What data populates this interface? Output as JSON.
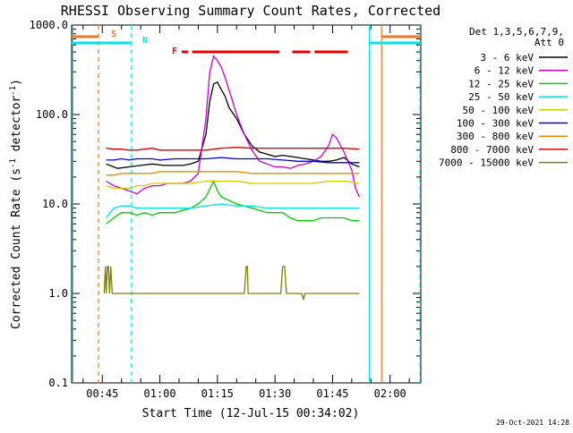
{
  "chart_data": {
    "type": "line",
    "title": "RHESSI Observing Summary Count Rates, Corrected",
    "xlabel": "Start Time (12-Jul-15 00:34:02)",
    "ylabel_parts": [
      "Corrected Count Rate (s",
      "-1",
      " detector",
      "-1",
      ")"
    ],
    "timestamp": "29-Oct-2021 14:28",
    "x_unit": "minutes after 00:00 UT",
    "xlim": [
      37,
      128
    ],
    "ylim": [
      0.1,
      1000
    ],
    "y_scale": "log",
    "x_ticks": [
      {
        "value": 45,
        "label": "00:45"
      },
      {
        "value": 60,
        "label": "01:00"
      },
      {
        "value": 75,
        "label": "01:15"
      },
      {
        "value": 90,
        "label": "01:30"
      },
      {
        "value": 105,
        "label": "01:45"
      },
      {
        "value": 120,
        "label": "02:00"
      }
    ],
    "y_ticks": [
      {
        "value": 0.1,
        "label": "0.1"
      },
      {
        "value": 1,
        "label": "1.0"
      },
      {
        "value": 10,
        "label": "10.0"
      },
      {
        "value": 100,
        "label": "100.0"
      },
      {
        "value": 1000,
        "label": "1000.0"
      }
    ],
    "legend_header": [
      "Det 1,3,5,6,7,9,",
      "Att 0"
    ],
    "legend_position": "right",
    "grid": false,
    "series": [
      {
        "name": "3 - 6 keV",
        "color": "#000000",
        "x": [
          46,
          49,
          52,
          55,
          58,
          61,
          64,
          66,
          68,
          70,
          72,
          73,
          74,
          75,
          76,
          77,
          78,
          80,
          82,
          84,
          86,
          88,
          90,
          92,
          94,
          96,
          98,
          100,
          102,
          104,
          106,
          108,
          110,
          112
        ],
        "y": [
          28,
          25,
          26,
          27,
          28,
          27,
          27,
          27,
          28,
          30,
          60,
          140,
          220,
          230,
          190,
          160,
          120,
          90,
          60,
          45,
          38,
          36,
          34,
          35,
          34,
          33,
          32,
          31,
          30,
          30,
          31,
          33,
          28,
          26
        ]
      },
      {
        "name": "6 - 12 keV",
        "color": "#cc00cc",
        "x": [
          46,
          48,
          50,
          52,
          54,
          56,
          58,
          60,
          62,
          64,
          66,
          68,
          70,
          72,
          73,
          74,
          75,
          76,
          77,
          78,
          80,
          82,
          84,
          86,
          88,
          90,
          92,
          94,
          96,
          98,
          100,
          102,
          104,
          105,
          106,
          108,
          110,
          111,
          112
        ],
        "y": [
          18,
          16,
          15,
          14,
          13,
          15,
          16,
          16,
          17,
          17,
          17,
          18,
          22,
          90,
          300,
          450,
          400,
          340,
          260,
          190,
          100,
          60,
          40,
          30,
          28,
          26,
          26,
          25,
          27,
          28,
          30,
          34,
          45,
          60,
          55,
          38,
          24,
          15,
          12
        ]
      },
      {
        "name": "12 - 25 keV",
        "color": "#00cc00",
        "x": [
          46,
          48,
          50,
          52,
          54,
          56,
          58,
          60,
          62,
          64,
          66,
          68,
          70,
          72,
          74,
          75,
          76,
          78,
          80,
          82,
          84,
          86,
          88,
          90,
          92,
          94,
          96,
          98,
          100,
          102,
          104,
          106,
          108,
          110,
          112
        ],
        "y": [
          6,
          7,
          8,
          8,
          7.5,
          8,
          7.5,
          8,
          8,
          8,
          8.5,
          9,
          10,
          12,
          18,
          14,
          12,
          11,
          10,
          9.5,
          9,
          8.5,
          8,
          8,
          8,
          7,
          6.5,
          6.5,
          6.5,
          7,
          7,
          7,
          7,
          6.5,
          6.5
        ]
      },
      {
        "name": "25 - 50 keV",
        "color": "#00e5e5",
        "x": [
          46,
          48,
          50,
          52,
          54,
          56,
          58,
          60,
          64,
          68,
          72,
          76,
          80,
          84,
          88,
          92,
          96,
          100,
          104,
          108,
          112
        ],
        "y": [
          7,
          9,
          9.5,
          9.5,
          9,
          9,
          9,
          9,
          9,
          9,
          9.5,
          10,
          9.5,
          9.5,
          9,
          9,
          9,
          9,
          9,
          9,
          9
        ]
      },
      {
        "name": "50 - 100 keV",
        "color": "#d6c800",
        "x": [
          46,
          48,
          50,
          52,
          54,
          56,
          58,
          60,
          64,
          68,
          72,
          76,
          80,
          84,
          88,
          92,
          96,
          100,
          104,
          108,
          112
        ],
        "y": [
          16,
          15,
          15,
          15,
          16,
          16,
          17,
          17,
          17,
          17,
          18,
          18,
          18,
          17,
          17,
          17,
          17,
          17,
          18,
          18,
          17
        ]
      },
      {
        "name": "100 - 300 keV",
        "color": "#0000dd",
        "x": [
          46,
          48,
          50,
          52,
          54,
          56,
          58,
          60,
          64,
          68,
          72,
          76,
          80,
          84,
          88,
          92,
          96,
          100,
          104,
          108,
          112
        ],
        "y": [
          31,
          31,
          32,
          31,
          32,
          32,
          32,
          31,
          32,
          32,
          32,
          33,
          32,
          32,
          32,
          31,
          30,
          30,
          29,
          29,
          29
        ]
      },
      {
        "name": "300 - 800 keV",
        "color": "#ee8800",
        "x": [
          46,
          48,
          50,
          52,
          54,
          56,
          58,
          60,
          64,
          68,
          72,
          76,
          80,
          84,
          88,
          92,
          96,
          100,
          104,
          108,
          112
        ],
        "y": [
          21,
          21,
          22,
          22,
          22,
          22,
          22,
          23,
          23,
          23,
          23,
          23,
          23,
          22,
          22,
          22,
          22,
          22,
          22,
          22,
          22
        ]
      },
      {
        "name": "800 - 7000 keV",
        "color": "#dd0000",
        "x": [
          46,
          48,
          50,
          52,
          54,
          56,
          58,
          60,
          64,
          68,
          72,
          76,
          80,
          84,
          88,
          92,
          96,
          100,
          104,
          108,
          112
        ],
        "y": [
          42,
          41,
          41,
          40,
          40,
          41,
          42,
          40,
          40,
          40,
          40,
          42,
          43,
          42,
          42,
          42,
          42,
          42,
          42,
          42,
          41
        ]
      },
      {
        "name": "7000 - 15000 keV",
        "color": "#808000",
        "x": [
          45.5,
          45.8,
          46,
          46.3,
          46.6,
          46.9,
          47.2,
          47.6,
          48,
          55,
          65,
          75,
          80,
          82,
          82.5,
          82.8,
          83,
          85,
          90,
          91.5,
          92,
          92.5,
          93,
          95,
          97,
          97.4,
          97.8,
          100,
          105,
          112
        ],
        "y": [
          1,
          2,
          1,
          2,
          2,
          1,
          2,
          1,
          1,
          1,
          1,
          1,
          1,
          1,
          2,
          2,
          1,
          1,
          1,
          1,
          2,
          2,
          1,
          1,
          1,
          0.85,
          1,
          1,
          1,
          1
        ]
      }
    ],
    "state_bars": [
      {
        "label": "S",
        "color": "#ee7722",
        "intervals": [
          [
            37,
            43.9
          ],
          [
            117.8,
            128
          ]
        ]
      },
      {
        "label": "N",
        "color": "#00e5e5",
        "intervals": [
          [
            37,
            52.4
          ],
          [
            114.6,
            128
          ]
        ]
      },
      {
        "label": "F",
        "color": "#ee0000",
        "intervals": [
          [
            65.7,
            67.4
          ],
          [
            68.4,
            91.2
          ],
          [
            94.5,
            99.2
          ],
          [
            100.3,
            109
          ]
        ]
      }
    ],
    "vertical_lines": [
      {
        "x": 44.0,
        "color": "#ee7722",
        "style": "dashed"
      },
      {
        "x": 52.6,
        "color": "#00e5e5",
        "style": "dashed"
      },
      {
        "x": 114.6,
        "color": "#00e5e5",
        "style": "solid"
      },
      {
        "x": 117.8,
        "color": "#ee7722",
        "style": "solid"
      },
      {
        "x": 127.8,
        "color": "#00e5e5",
        "style": "dashed"
      },
      {
        "x": 37.3,
        "color": "#00e5e5",
        "style": "solid"
      }
    ]
  }
}
